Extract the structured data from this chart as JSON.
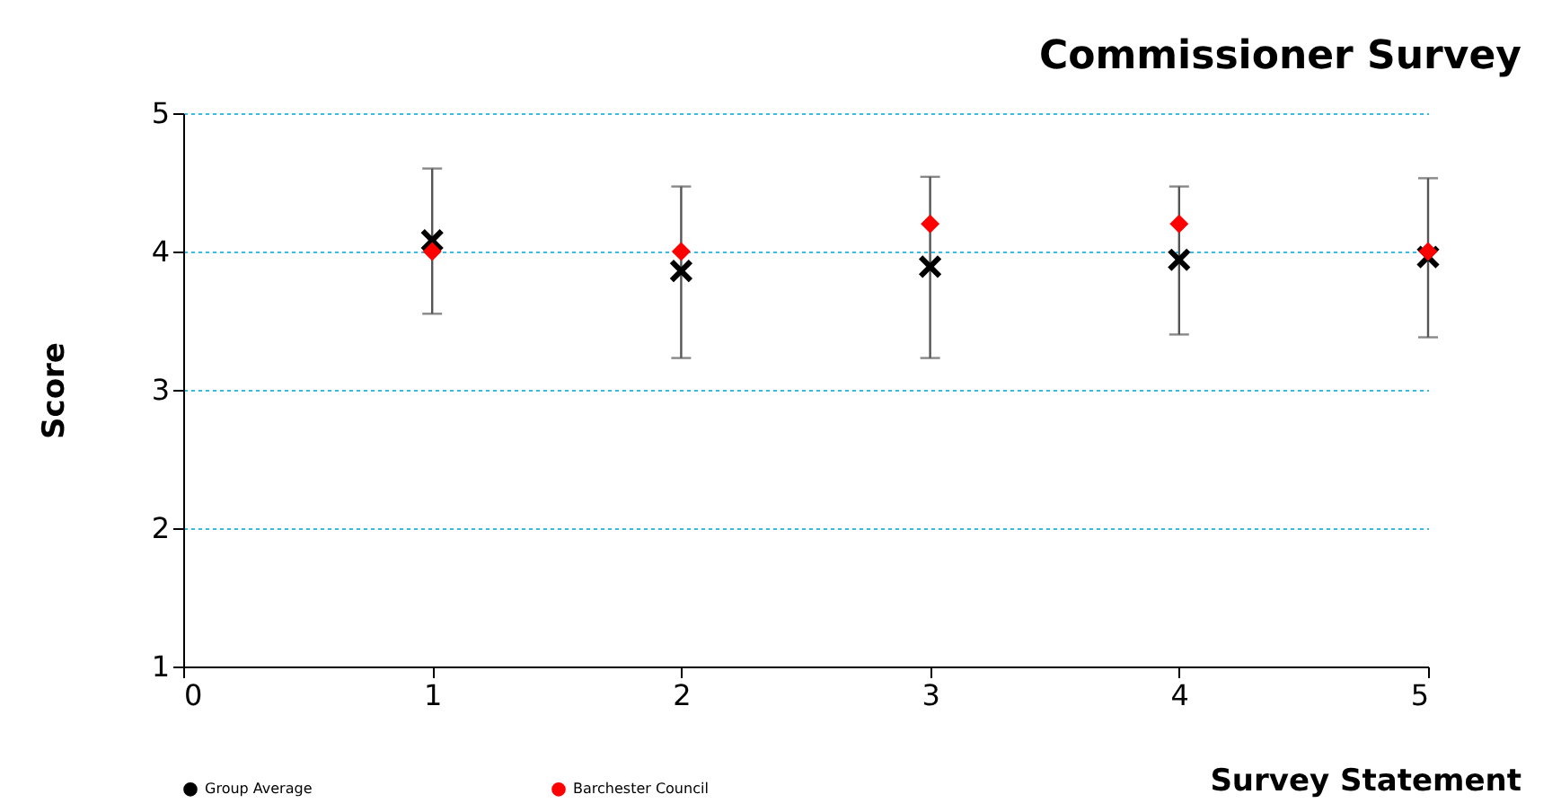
{
  "chart_data": {
    "type": "scatter",
    "title": "Commissioner Survey",
    "xlabel": "Survey Statement",
    "ylabel": "Score",
    "x": [
      1,
      2,
      3,
      4,
      5
    ],
    "series": [
      {
        "name": "Group Average",
        "color": "#000000",
        "marker": "cross",
        "values": [
          4.08,
          3.86,
          3.89,
          3.94,
          3.96
        ],
        "errors": [
          [
            3.55,
            4.6
          ],
          [
            3.23,
            4.47
          ],
          [
            3.23,
            4.54
          ],
          [
            3.4,
            4.47
          ],
          [
            3.38,
            4.53
          ]
        ]
      },
      {
        "name": "Barchester Council",
        "color": "#ff0000",
        "marker": "diamond",
        "values": [
          4.0,
          4.0,
          4.2,
          4.2,
          4.0
        ]
      }
    ],
    "xlim": [
      0,
      5
    ],
    "xticks": [
      0,
      1,
      2,
      3,
      4,
      5
    ],
    "ylim": [
      1,
      5
    ],
    "yticks": [
      1,
      2,
      3,
      4,
      5
    ],
    "grid": "y",
    "legend": "bottom"
  }
}
